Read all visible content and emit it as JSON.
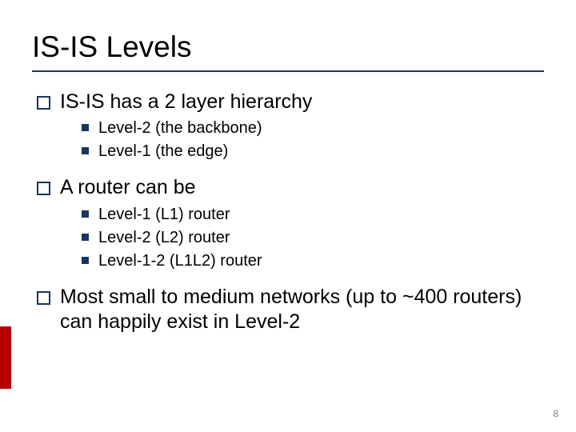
{
  "colors": {
    "rule": "#16365c",
    "outline_bullet_border": "#16365c",
    "filled_bullet": "#16365c",
    "accent_bar": "#b90000",
    "text": "#000000",
    "pagenum": "#7a7a7a",
    "background": "#ffffff"
  },
  "fonts": {
    "family": "Verdana",
    "title_size_pt": 28,
    "lvl1_size_pt": 19,
    "lvl2_size_pt": 15,
    "pagenum_size_pt": 9
  },
  "title": "IS-IS Levels",
  "bullets": [
    {
      "text": "IS-IS has a 2 layer hierarchy",
      "children": [
        {
          "text": "Level-2 (the backbone)"
        },
        {
          "text": "Level-1 (the edge)"
        }
      ]
    },
    {
      "text": "A router can be",
      "children": [
        {
          "text": "Level-1 (L1)  router"
        },
        {
          "text": "Level-2 (L2)  router"
        },
        {
          "text": "Level-1-2 (L1L2) router"
        }
      ]
    },
    {
      "text": "Most small to medium networks (up to ~400 routers) can happily exist in Level-2",
      "children": []
    }
  ],
  "page_number": "8"
}
